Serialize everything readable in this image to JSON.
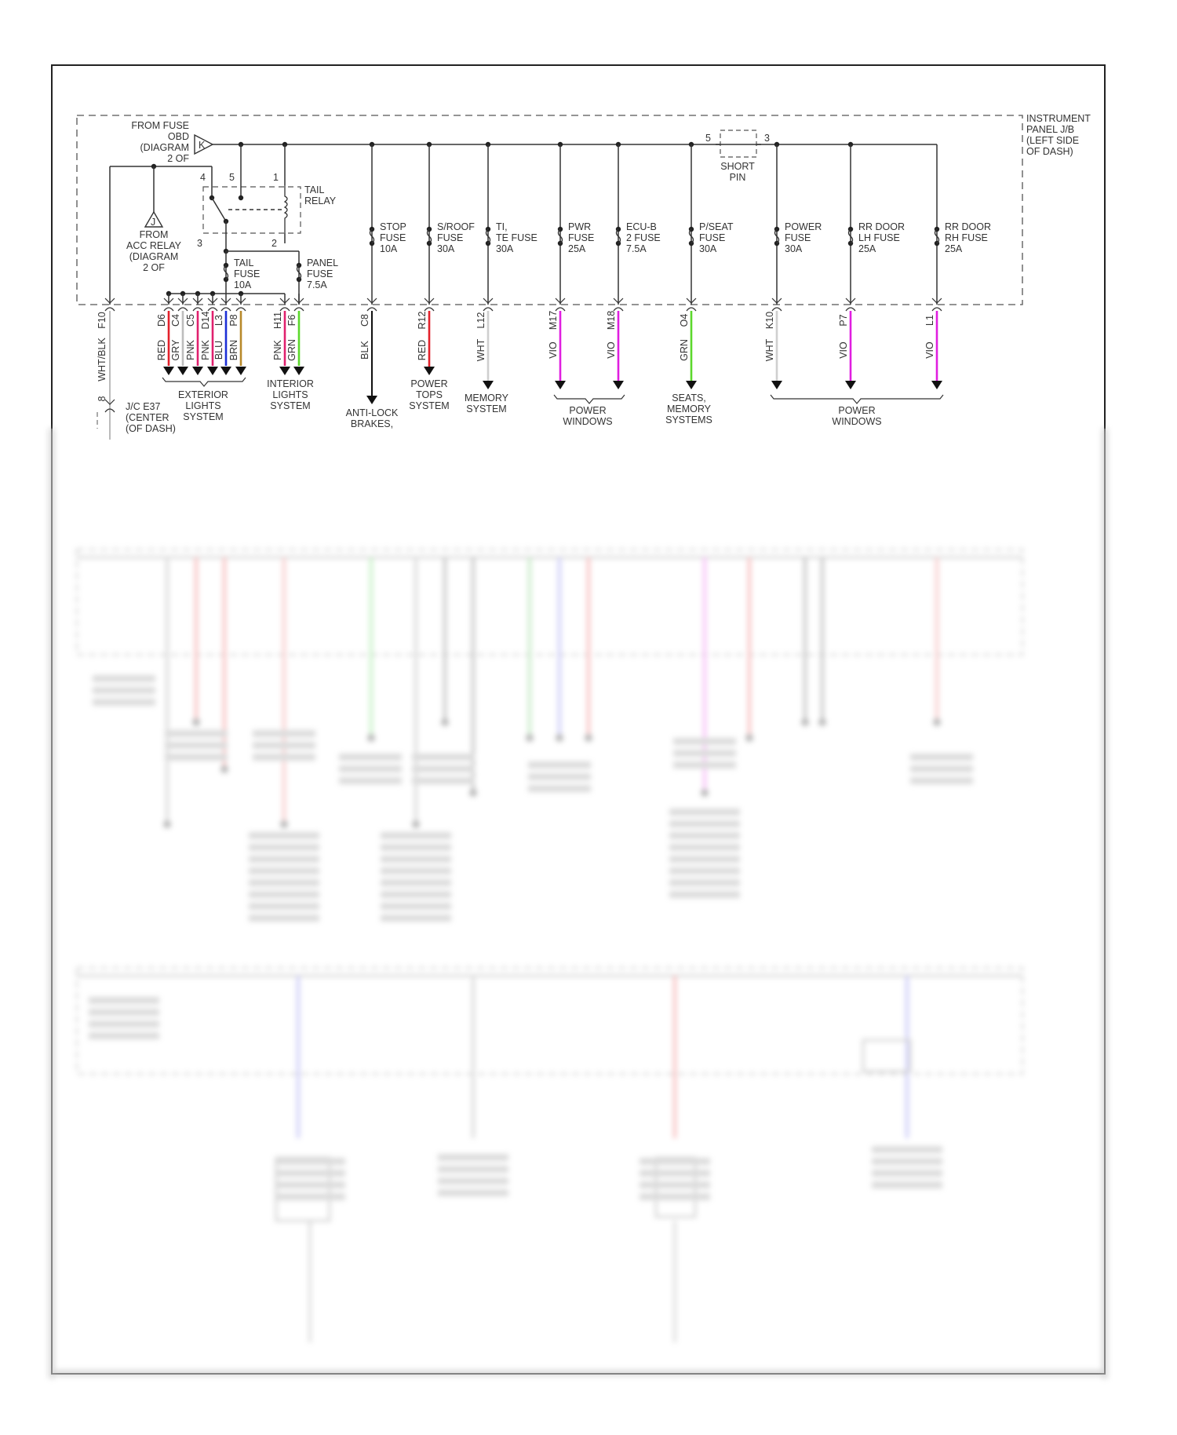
{
  "panel": {
    "lines": [
      "INSTRUMENT",
      "PANEL J/B",
      "(LEFT SIDE",
      "OF DASH)"
    ]
  },
  "source_k": {
    "letter": "K",
    "lines": [
      "FROM FUSE",
      "OBD",
      "(DIAGRAM",
      "2 OF"
    ]
  },
  "source_j": {
    "letter": "J",
    "lines": [
      "FROM",
      "ACC RELAY",
      "(DIAGRAM",
      "2 OF"
    ]
  },
  "tail_relay": {
    "lines": [
      "TAIL",
      "RELAY"
    ],
    "pins": [
      "4",
      "5",
      "1",
      "3",
      "2"
    ]
  },
  "short_pin": {
    "lines": [
      "SHORT",
      "PIN"
    ],
    "pins": [
      "5",
      "3"
    ]
  },
  "tail_fuse": {
    "lines": [
      "TAIL",
      "FUSE",
      "10A"
    ]
  },
  "panel_fuse": {
    "lines": [
      "PANEL",
      "FUSE",
      "7.5A"
    ]
  },
  "left_wire": {
    "connector": "F10",
    "color_code": "WHT/BLK",
    "pin": "8",
    "jc_lines": [
      "J/C E37",
      "(CENTER",
      "(OF DASH)"
    ]
  },
  "exterior_wires": [
    {
      "connector": "D6",
      "color_code": "RED",
      "color": "#e3212b"
    },
    {
      "connector": "C4",
      "color_code": "GRY",
      "color": "#bdbdbd"
    },
    {
      "connector": "C5",
      "color_code": "PNK",
      "color": "#e0206e"
    },
    {
      "connector": "D14",
      "color_code": "PNK",
      "color": "#e0206e"
    },
    {
      "connector": "L3",
      "color_code": "BLU",
      "color": "#1c2fd6"
    },
    {
      "connector": "P8",
      "color_code": "BRN",
      "color": "#b8892a"
    }
  ],
  "exterior_dest": [
    "EXTERIOR",
    "LIGHTS",
    "SYSTEM"
  ],
  "interior_wires": [
    {
      "connector": "H11",
      "color_code": "PNK",
      "color": "#e0206e"
    },
    {
      "connector": "F6",
      "color_code": "GRN",
      "color": "#5cd82c"
    }
  ],
  "interior_dest": [
    "INTERIOR",
    "LIGHTS",
    "SYSTEM"
  ],
  "branches": [
    {
      "fuse": [
        "STOP",
        "FUSE",
        "10A"
      ],
      "connector": "C8",
      "color_code": "BLK",
      "color": "#111111",
      "dest": [
        "ANTI-LOCK",
        "BRAKES,"
      ]
    },
    {
      "fuse": [
        "S/ROOF",
        "FUSE",
        "30A"
      ],
      "connector": "R12",
      "color_code": "RED",
      "color": "#e3212b",
      "dest": [
        "POWER",
        "TOPS",
        "SYSTEM"
      ]
    },
    {
      "fuse": [
        "TI,",
        "TE FUSE",
        "30A"
      ],
      "connector": "L12",
      "color_code": "WHT",
      "color": "#cfcfcf",
      "dest": [
        "MEMORY",
        "SYSTEM"
      ]
    },
    {
      "fuse": [
        "PWR",
        "FUSE",
        "25A"
      ],
      "connector": "M17",
      "color_code": "VIO",
      "color": "#e01ee0",
      "dest": []
    },
    {
      "fuse": [
        "ECU-B",
        "2 FUSE",
        "7.5A"
      ],
      "connector": "M18",
      "color_code": "VIO",
      "color": "#e01ee0",
      "dest": []
    },
    {
      "fuse": [
        "P/SEAT",
        "FUSE",
        "30A"
      ],
      "connector": "O4",
      "color_code": "GRN",
      "color": "#5cd82c",
      "dest": [
        "SEATS,",
        "MEMORY",
        "SYSTEMS"
      ]
    },
    {
      "fuse": [
        "POWER",
        "FUSE",
        "30A"
      ],
      "connector": "K10",
      "color_code": "WHT",
      "color": "#cfcfcf",
      "dest": []
    },
    {
      "fuse": [
        "RR DOOR",
        "LH FUSE",
        "25A"
      ],
      "connector": "P7",
      "color_code": "VIO",
      "color": "#e01ee0",
      "dest": []
    },
    {
      "fuse": [
        "RR DOOR",
        "RH FUSE",
        "25A"
      ],
      "connector": "L1",
      "color_code": "VIO",
      "color": "#e01ee0",
      "dest": []
    }
  ],
  "power_windows_dest_a": [
    "POWER",
    "WINDOWS"
  ],
  "power_windows_dest_b": [
    "POWER",
    "WINDOWS"
  ]
}
